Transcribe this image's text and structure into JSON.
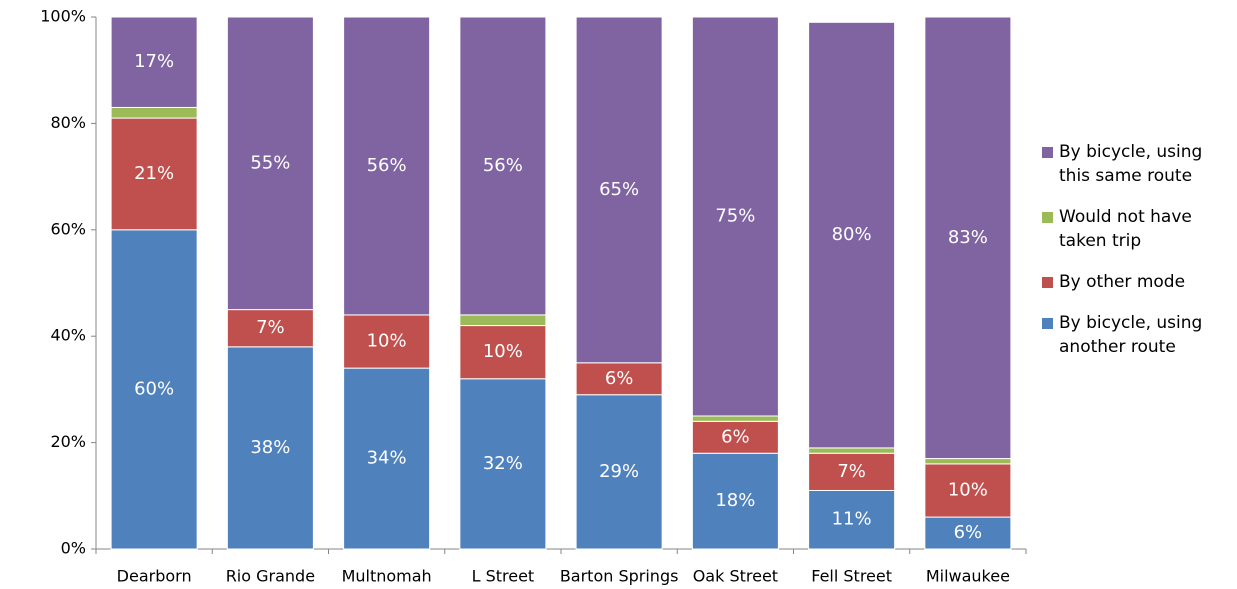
{
  "chart_data": {
    "type": "stacked-bar",
    "categories": [
      "Dearborn",
      "Rio Grande",
      "Multnomah",
      "L Street",
      "Barton Springs",
      "Oak Street",
      "Fell Street",
      "Milwaukee"
    ],
    "series": [
      {
        "name": "By bicycle, using another route",
        "color": "#4f81bd",
        "values": [
          60,
          38,
          34,
          32,
          29,
          18,
          11,
          6
        ],
        "value_labels": [
          "60%",
          "38%",
          "34%",
          "32%",
          "29%",
          "18%",
          "11%",
          "6%"
        ]
      },
      {
        "name": "By other mode",
        "color": "#c0504d",
        "values": [
          21,
          7,
          10,
          10,
          6,
          6,
          7,
          10
        ],
        "value_labels": [
          "21%",
          "7%",
          "10%",
          "10%",
          "6%",
          "6%",
          "7%",
          "10%"
        ]
      },
      {
        "name": "Would not have taken trip",
        "color": "#9bbb59",
        "values": [
          2,
          0,
          0,
          2,
          0,
          1,
          1,
          1
        ]
      },
      {
        "name": "By bicycle, using this same route",
        "color": "#8064a2",
        "values": [
          17,
          55,
          56,
          56,
          65,
          75,
          80,
          83
        ],
        "value_labels": [
          "17%",
          "55%",
          "56%",
          "56%",
          "65%",
          "75%",
          "80%",
          "83%"
        ]
      }
    ],
    "ylim": [
      0,
      100
    ],
    "yticks": [
      {
        "value": 0,
        "label": "0%"
      },
      {
        "value": 20,
        "label": "20%"
      },
      {
        "value": 40,
        "label": "40%"
      },
      {
        "value": 60,
        "label": "60%"
      },
      {
        "value": 80,
        "label": "80%"
      },
      {
        "value": 100,
        "label": "100%"
      }
    ],
    "legend": "right"
  }
}
